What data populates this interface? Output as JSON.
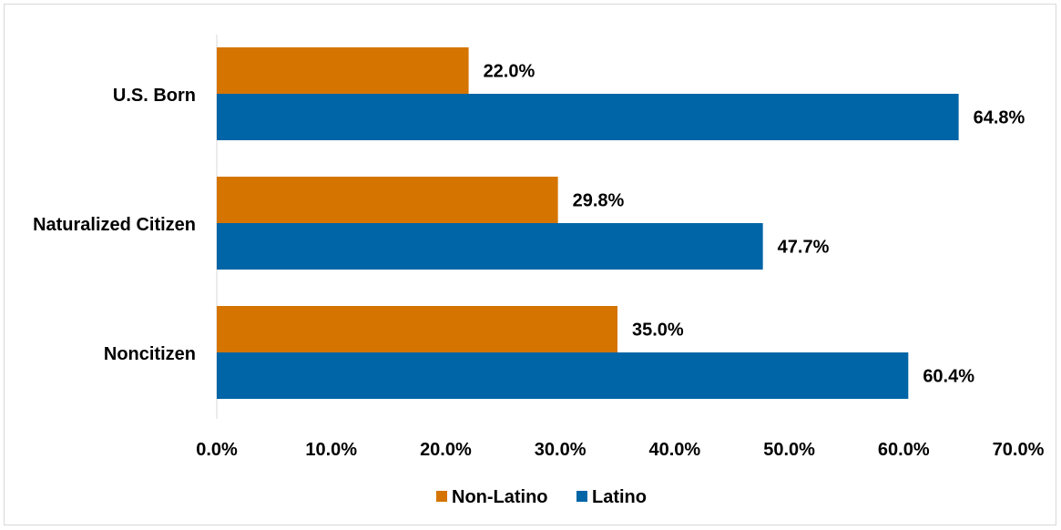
{
  "chart_data": {
    "type": "bar",
    "orientation": "horizontal",
    "categories": [
      "U.S. Born",
      "Naturalized Citizen",
      "Noncitizen"
    ],
    "series": [
      {
        "name": "Non-Latino",
        "values": [
          22.0,
          29.8,
          35.0
        ],
        "labels": [
          "22.0%",
          "29.8%",
          "35.0%"
        ],
        "color": "#d57500"
      },
      {
        "name": "Latino",
        "values": [
          64.8,
          47.7,
          60.4
        ],
        "labels": [
          "64.8%",
          "47.7%",
          "60.4%"
        ],
        "color": "#0065a6"
      }
    ],
    "xlim": [
      0,
      70
    ],
    "x_ticks": [
      0,
      10,
      20,
      30,
      40,
      50,
      60,
      70
    ],
    "x_tick_labels": [
      "0.0%",
      "10.0%",
      "20.0%",
      "30.0%",
      "40.0%",
      "50.0%",
      "60.0%",
      "70.0%"
    ],
    "legend_position": "bottom",
    "grid": false,
    "title": "",
    "xlabel": "",
    "ylabel": ""
  }
}
